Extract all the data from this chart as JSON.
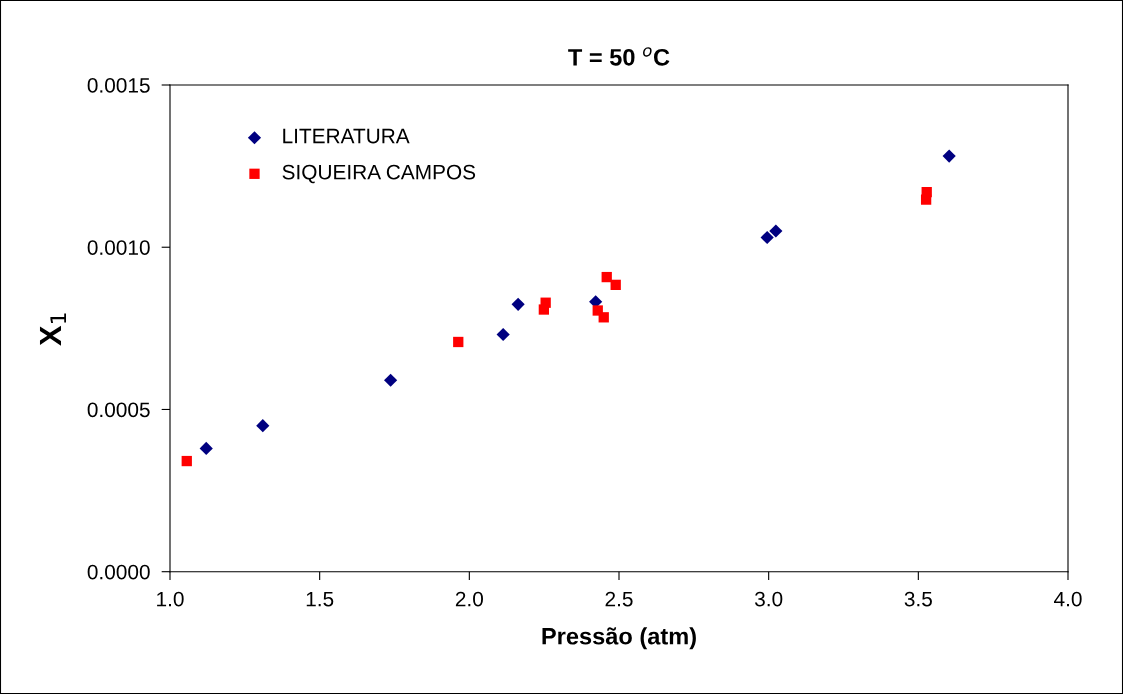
{
  "chart_data": {
    "type": "scatter",
    "title": "T = 50 $^{o}$C",
    "xlabel": "Pressão (atm)",
    "ylabel": "X$_{1}$",
    "xlim": [
      1.0,
      4.0
    ],
    "xticks": [
      {
        "value": 1.0,
        "label": "1.0"
      },
      1.5,
      {
        "value": 2.0,
        "label": "2.0"
      },
      2.5,
      {
        "value": 3.0,
        "label": "3.0"
      },
      3.5,
      {
        "value": 4.0,
        "label": "4.0"
      }
    ],
    "ylim": [
      0,
      0.0015
    ],
    "yticks": [
      {
        "value": 0,
        "label": "0.0000"
      },
      {
        "value": 0.0005,
        "label": "0.0005"
      },
      {
        "value": 0.001,
        "label": "0.0010"
      },
      {
        "value": 0.0015,
        "label": "0.0015"
      }
    ],
    "grid": false,
    "legend": "top left",
    "series": [
      {
        "name": "LITERATURA",
        "color": "#000080",
        "marker": "diamond",
        "x": [
          1.121,
          1.31,
          1.737,
          2.113,
          2.163,
          2.422,
          2.995,
          3.024,
          3.603
        ],
        "values": [
          0.00038,
          0.00045,
          0.00059,
          0.000731,
          0.000824,
          0.000832,
          0.00103,
          0.00105,
          0.001281
        ]
      },
      {
        "name": "SIQUEIRA CAMPOS",
        "color": "#ff0000",
        "marker": "square",
        "x": [
          1.056,
          1.963,
          2.249,
          2.255,
          2.429,
          2.449,
          2.459,
          2.489,
          3.526,
          3.528
        ],
        "values": [
          0.000341,
          0.000708,
          0.000808,
          0.000829,
          0.000805,
          0.000784,
          0.000908,
          0.000884,
          0.001147,
          0.00117
        ]
      }
    ]
  }
}
